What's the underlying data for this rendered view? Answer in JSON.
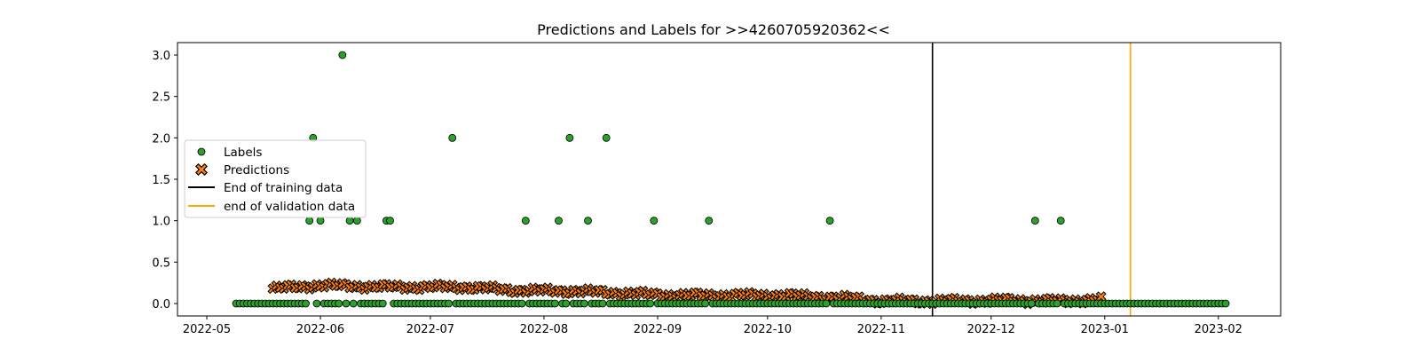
{
  "chart_data": {
    "type": "scatter",
    "title": "Predictions and Labels for >>4260705920362<<",
    "xlabel": "",
    "ylabel": "",
    "x_axis_type": "date",
    "xlim": [
      "2022-04-23",
      "2023-02-18"
    ],
    "ylim": [
      -0.15,
      3.15
    ],
    "x_ticks": [
      "2022-05",
      "2022-06",
      "2022-07",
      "2022-08",
      "2022-09",
      "2022-10",
      "2022-11",
      "2022-12",
      "2023-01",
      "2023-02"
    ],
    "x_tick_dates": [
      "2022-05-01",
      "2022-06-01",
      "2022-07-01",
      "2022-08-01",
      "2022-09-01",
      "2022-10-01",
      "2022-11-01",
      "2022-12-01",
      "2023-01-01",
      "2023-02-01"
    ],
    "y_ticks": [
      "0.0",
      "0.5",
      "1.0",
      "1.5",
      "2.0",
      "2.5",
      "3.0"
    ],
    "y_tick_values": [
      0,
      0.5,
      1,
      1.5,
      2,
      2.5,
      3
    ],
    "grid": false,
    "legend_position": "center-left",
    "legend": [
      {
        "label": "Labels",
        "kind": "circle"
      },
      {
        "label": "Predictions",
        "kind": "x"
      },
      {
        "label": "End of training data",
        "kind": "line-black"
      },
      {
        "label": "end of validation data",
        "kind": "line-orange"
      }
    ],
    "colors": {
      "labels": "#2ca02c",
      "predictions": "#ff7f0e",
      "training_end": "#000000",
      "validation_end": "#ffa500"
    },
    "vlines": [
      {
        "name": "End of training data",
        "x": "2022-11-15"
      },
      {
        "name": "end of validation data",
        "x": "2023-01-08"
      }
    ],
    "series": [
      {
        "name": "Labels",
        "x_start": "2022-05-09",
        "x_end": "2023-02-03",
        "default_y": 0,
        "nonzero_points": [
          [
            "2022-05-29",
            1
          ],
          [
            "2022-05-30",
            2
          ],
          [
            "2022-06-01",
            1
          ],
          [
            "2022-06-07",
            3
          ],
          [
            "2022-06-09",
            1
          ],
          [
            "2022-06-11",
            1
          ],
          [
            "2022-06-19",
            1
          ],
          [
            "2022-06-20",
            1
          ],
          [
            "2022-07-07",
            2
          ],
          [
            "2022-07-27",
            1
          ],
          [
            "2022-08-05",
            1
          ],
          [
            "2022-08-08",
            2
          ],
          [
            "2022-08-13",
            1
          ],
          [
            "2022-08-18",
            2
          ],
          [
            "2022-08-31",
            1
          ],
          [
            "2022-09-15",
            1
          ],
          [
            "2022-10-18",
            1
          ],
          [
            "2022-12-13",
            1
          ],
          [
            "2022-12-20",
            1
          ]
        ]
      },
      {
        "name": "Predictions",
        "x_start": "2022-05-19",
        "x_end": "2022-12-31",
        "segments": [
          [
            "2022-05-19",
            0.18
          ],
          [
            "2022-06-01",
            0.22
          ],
          [
            "2022-06-20",
            0.2
          ],
          [
            "2022-07-10",
            0.2
          ],
          [
            "2022-07-25",
            0.16
          ],
          [
            "2022-08-10",
            0.15
          ],
          [
            "2022-09-05",
            0.1
          ],
          [
            "2022-10-05",
            0.1
          ],
          [
            "2022-10-25",
            0.06
          ],
          [
            "2022-11-01",
            0.03
          ],
          [
            "2022-11-20",
            0.03
          ],
          [
            "2022-12-05",
            0.04
          ],
          [
            "2022-12-20",
            0.03
          ],
          [
            "2022-12-31",
            0.05
          ]
        ]
      }
    ]
  }
}
